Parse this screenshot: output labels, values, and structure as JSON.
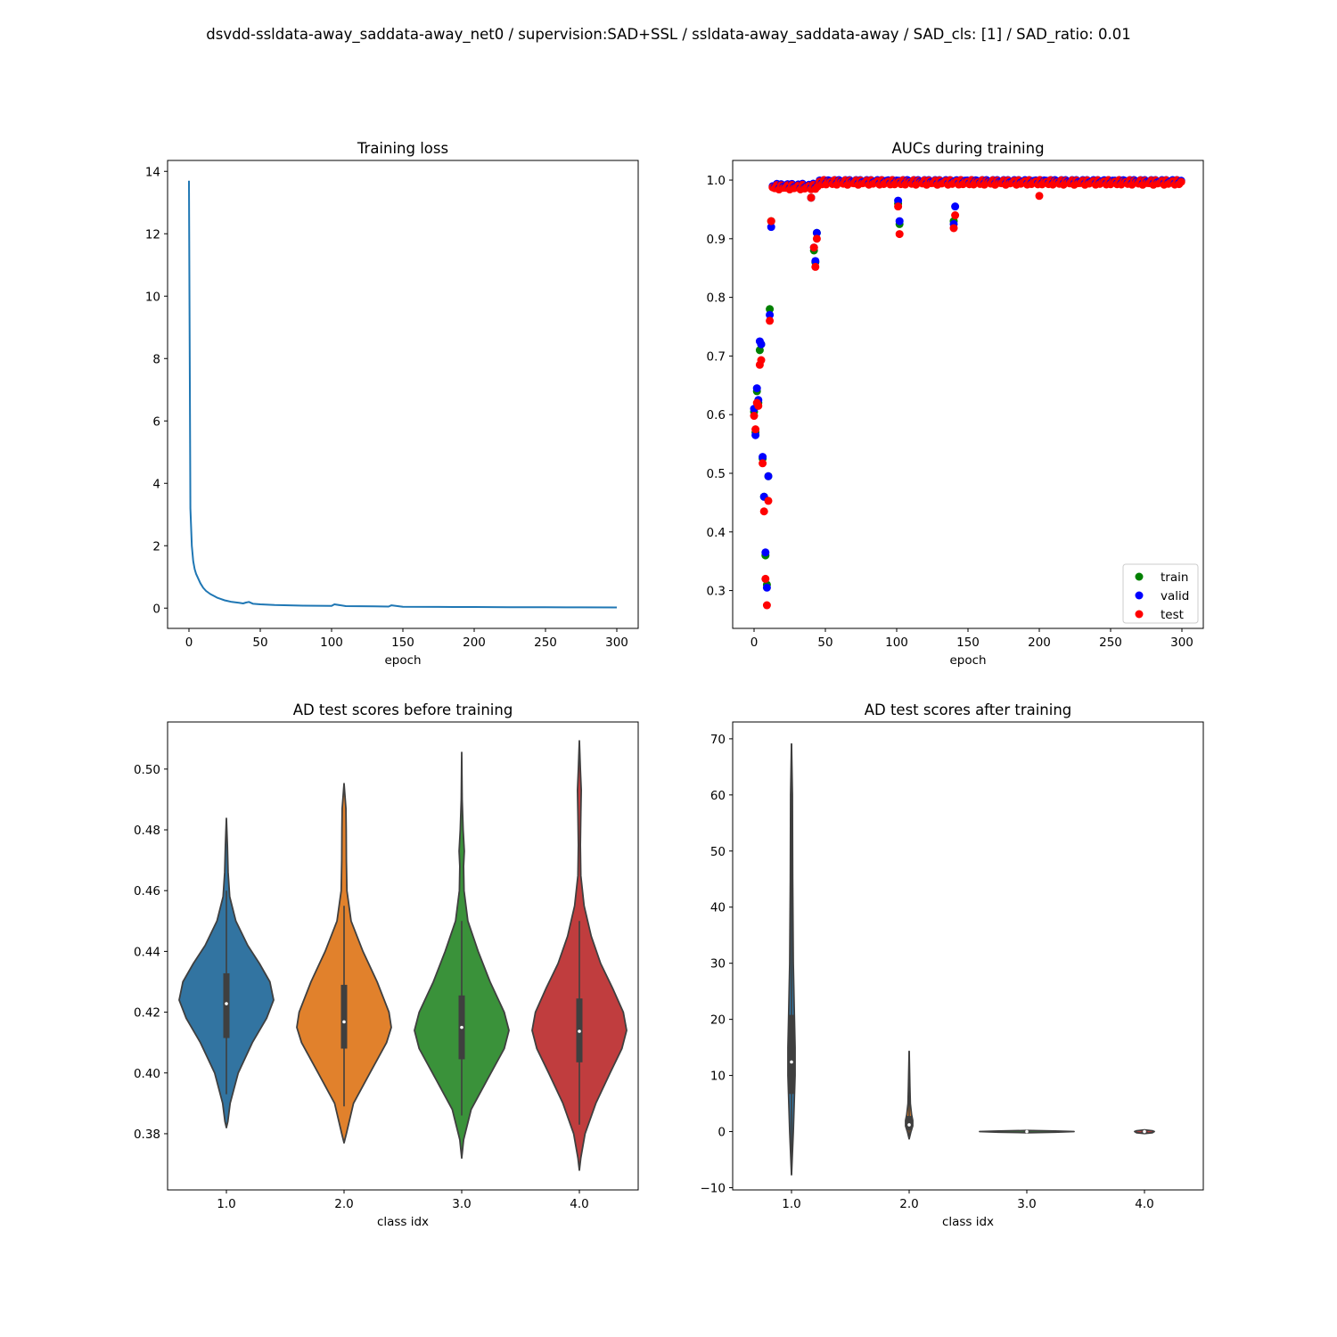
{
  "suptitle": "dsvdd-ssldata-away_saddata-away_net0 / supervision:SAD+SSL / ssldata-away_saddata-away / SAD_cls: [1] / SAD_ratio: 0.01",
  "colors": {
    "loss_line": "#1f77b4",
    "train": "#008000",
    "valid": "#0000ff",
    "test": "#ff0000",
    "violin_1": "#3274a1",
    "violin_2": "#e1812c",
    "violin_3": "#3a923a",
    "violin_4": "#c03d3e",
    "violin_edge": "#3f3f3f"
  },
  "chart_data": [
    {
      "id": "loss",
      "type": "line",
      "title": "Training loss",
      "xlabel": "epoch",
      "ylabel": "",
      "xlim": [
        -15,
        315
      ],
      "ylim": [
        -0.65,
        14.35
      ],
      "xticks": [
        0,
        50,
        100,
        150,
        200,
        250,
        300
      ],
      "yticks": [
        0,
        2,
        4,
        6,
        8,
        10,
        12,
        14
      ],
      "grid": false,
      "x": [
        0,
        1,
        2,
        3,
        4,
        5,
        6,
        8,
        10,
        12,
        15,
        18,
        20,
        22,
        25,
        30,
        35,
        38,
        40,
        42,
        45,
        50,
        60,
        70,
        80,
        90,
        100,
        102,
        110,
        120,
        130,
        140,
        142,
        150,
        175,
        200,
        225,
        250,
        275,
        300
      ],
      "y": [
        13.7,
        3.2,
        2.0,
        1.5,
        1.25,
        1.1,
        1.0,
        0.8,
        0.65,
        0.55,
        0.45,
        0.38,
        0.33,
        0.3,
        0.25,
        0.2,
        0.17,
        0.15,
        0.18,
        0.2,
        0.14,
        0.12,
        0.1,
        0.09,
        0.08,
        0.075,
        0.07,
        0.12,
        0.065,
        0.06,
        0.055,
        0.05,
        0.09,
        0.045,
        0.04,
        0.035,
        0.03,
        0.028,
        0.025,
        0.02
      ]
    },
    {
      "id": "aucs",
      "type": "scatter",
      "title": "AUCs during training",
      "xlabel": "epoch",
      "ylabel": "",
      "xlim": [
        -15,
        315
      ],
      "ylim": [
        0.2355,
        1.0335
      ],
      "xticks": [
        0,
        50,
        100,
        150,
        200,
        250,
        300
      ],
      "yticks": [
        0.3,
        0.4,
        0.5,
        0.6,
        0.7,
        0.8,
        0.9,
        1.0
      ],
      "grid": false,
      "legend": "bottom-right",
      "series": [
        {
          "name": "train",
          "x": [
            0,
            1,
            2,
            3,
            4,
            5,
            6,
            7,
            8,
            9,
            10,
            11,
            12,
            40,
            42,
            43,
            44,
            101,
            102,
            140
          ],
          "y": [
            0.605,
            0.57,
            0.64,
            0.62,
            0.71,
            0.72,
            0.525,
            0.46,
            0.36,
            0.31,
            0.495,
            0.78,
            0.93,
            0.97,
            0.88,
            0.86,
            0.91,
            0.96,
            0.925,
            0.93
          ]
        },
        {
          "name": "valid",
          "x": [
            0,
            1,
            2,
            3,
            4,
            5,
            6,
            7,
            8,
            9,
            10,
            11,
            12,
            40,
            42,
            43,
            44,
            101,
            102,
            140,
            141
          ],
          "y": [
            0.61,
            0.565,
            0.645,
            0.625,
            0.725,
            0.72,
            0.528,
            0.46,
            0.365,
            0.305,
            0.495,
            0.77,
            0.92,
            0.97,
            0.885,
            0.862,
            0.91,
            0.965,
            0.93,
            0.925,
            0.955
          ]
        },
        {
          "name": "test",
          "x": [
            0,
            1,
            2,
            3,
            4,
            5,
            6,
            7,
            8,
            9,
            10,
            11,
            12,
            40,
            42,
            43,
            44,
            101,
            102,
            140,
            141,
            200
          ],
          "y": [
            0.598,
            0.575,
            0.62,
            0.615,
            0.685,
            0.693,
            0.517,
            0.435,
            0.32,
            0.275,
            0.453,
            0.76,
            0.93,
            0.97,
            0.885,
            0.852,
            0.9,
            0.955,
            0.908,
            0.918,
            0.94,
            0.973
          ]
        }
      ]
    },
    {
      "id": "before",
      "type": "violin",
      "title": "AD test scores before training",
      "xlabel": "class idx",
      "ylabel": "",
      "categories": [
        "1.0",
        "2.0",
        "3.0",
        "4.0"
      ],
      "ylim": [
        0.3615,
        0.5155
      ],
      "yticks": [
        0.38,
        0.4,
        0.42,
        0.44,
        0.46,
        0.48,
        0.5
      ],
      "grid": false,
      "violins": [
        {
          "min": 0.382,
          "max": 0.4838,
          "q1": 0.4115,
          "median": 0.4228,
          "q3": 0.4328,
          "whisker_low": 0.393,
          "whisker_high": 0.46,
          "profile": [
            [
              0.382,
              0
            ],
            [
              0.384,
              0.03
            ],
            [
              0.39,
              0.08
            ],
            [
              0.4,
              0.25
            ],
            [
              0.41,
              0.55
            ],
            [
              0.418,
              0.85
            ],
            [
              0.424,
              1.0
            ],
            [
              0.43,
              0.92
            ],
            [
              0.436,
              0.7
            ],
            [
              0.442,
              0.45
            ],
            [
              0.45,
              0.2
            ],
            [
              0.458,
              0.07
            ],
            [
              0.466,
              0.035
            ],
            [
              0.475,
              0.02
            ],
            [
              0.4838,
              0
            ]
          ]
        },
        {
          "min": 0.377,
          "max": 0.4952,
          "q1": 0.408,
          "median": 0.4168,
          "q3": 0.429,
          "whisker_low": 0.389,
          "whisker_high": 0.455,
          "profile": [
            [
              0.377,
              0
            ],
            [
              0.38,
              0.05
            ],
            [
              0.39,
              0.2
            ],
            [
              0.4,
              0.55
            ],
            [
              0.41,
              0.9
            ],
            [
              0.415,
              1.0
            ],
            [
              0.42,
              0.95
            ],
            [
              0.43,
              0.7
            ],
            [
              0.44,
              0.4
            ],
            [
              0.45,
              0.15
            ],
            [
              0.46,
              0.06
            ],
            [
              0.47,
              0.05
            ],
            [
              0.48,
              0.045
            ],
            [
              0.487,
              0.04
            ],
            [
              0.4952,
              0
            ]
          ]
        },
        {
          "min": 0.372,
          "max": 0.5055,
          "q1": 0.4045,
          "median": 0.415,
          "q3": 0.4255,
          "whisker_low": 0.386,
          "whisker_high": 0.45,
          "profile": [
            [
              0.372,
              0
            ],
            [
              0.378,
              0.04
            ],
            [
              0.388,
              0.2
            ],
            [
              0.398,
              0.55
            ],
            [
              0.408,
              0.9
            ],
            [
              0.414,
              1.0
            ],
            [
              0.42,
              0.9
            ],
            [
              0.43,
              0.6
            ],
            [
              0.44,
              0.35
            ],
            [
              0.45,
              0.13
            ],
            [
              0.46,
              0.05
            ],
            [
              0.468,
              0.04
            ],
            [
              0.473,
              0.055
            ],
            [
              0.48,
              0.03
            ],
            [
              0.49,
              0.01
            ],
            [
              0.5055,
              0
            ]
          ]
        },
        {
          "min": 0.368,
          "max": 0.5093,
          "q1": 0.4035,
          "median": 0.4137,
          "q3": 0.4245,
          "whisker_low": 0.383,
          "whisker_high": 0.45,
          "profile": [
            [
              0.368,
              0
            ],
            [
              0.372,
              0.03
            ],
            [
              0.38,
              0.12
            ],
            [
              0.39,
              0.35
            ],
            [
              0.4,
              0.65
            ],
            [
              0.408,
              0.9
            ],
            [
              0.414,
              1.0
            ],
            [
              0.42,
              0.93
            ],
            [
              0.428,
              0.7
            ],
            [
              0.436,
              0.45
            ],
            [
              0.445,
              0.25
            ],
            [
              0.455,
              0.1
            ],
            [
              0.465,
              0.03
            ],
            [
              0.475,
              0.02
            ],
            [
              0.485,
              0.03
            ],
            [
              0.493,
              0.04
            ],
            [
              0.5,
              0.02
            ],
            [
              0.5093,
              0
            ]
          ]
        }
      ]
    },
    {
      "id": "after",
      "type": "violin",
      "title": "AD test scores after training",
      "xlabel": "class idx",
      "ylabel": "",
      "categories": [
        "1.0",
        "2.0",
        "3.0",
        "4.0"
      ],
      "ylim": [
        -10.4,
        73
      ],
      "yticks": [
        -10,
        0,
        10,
        20,
        30,
        40,
        50,
        60,
        70
      ],
      "grid": false,
      "violins": [
        {
          "min": -7.7,
          "max": 69.1,
          "q1": 6.7,
          "median": 12.4,
          "q3": 20.8,
          "whisker_low": -7.7,
          "whisker_high": 69.1,
          "profile": [
            [
              -7.7,
              0
            ],
            [
              0,
              0.006
            ],
            [
              5,
              0.009
            ],
            [
              10,
              0.012
            ],
            [
              15,
              0.012
            ],
            [
              20,
              0.01
            ],
            [
              30,
              0.006
            ],
            [
              45,
              0.004
            ],
            [
              60,
              0.003
            ],
            [
              69.1,
              0
            ]
          ]
        },
        {
          "min": -1.3,
          "max": 14.3,
          "q1": 0.2,
          "median": 1.2,
          "q3": 2.8,
          "whisker_low": -1.3,
          "whisker_high": 14.3,
          "profile": [
            [
              -1.3,
              0
            ],
            [
              0,
              0.015
            ],
            [
              1,
              0.03
            ],
            [
              2,
              0.03
            ],
            [
              3,
              0.02
            ],
            [
              5,
              0.01
            ],
            [
              8,
              0.006
            ],
            [
              14.3,
              0
            ]
          ]
        },
        {
          "min": -0.2,
          "max": 0.2,
          "q1": -0.02,
          "median": 0.0,
          "q3": 0.02,
          "whisker_low": -0.05,
          "whisker_high": 0.05,
          "profile": [
            [
              -0.2,
              0
            ],
            [
              -0.1,
              0.6
            ],
            [
              0,
              1.0
            ],
            [
              0.1,
              0.6
            ],
            [
              0.2,
              0
            ]
          ]
        },
        {
          "min": -0.35,
          "max": 0.3,
          "q1": -0.05,
          "median": 0.0,
          "q3": 0.05,
          "whisker_low": -0.1,
          "whisker_high": 0.1,
          "profile": [
            [
              -0.35,
              0
            ],
            [
              -0.2,
              0.12
            ],
            [
              0,
              0.15
            ],
            [
              0.15,
              0.12
            ],
            [
              0.3,
              0
            ]
          ]
        }
      ]
    }
  ]
}
